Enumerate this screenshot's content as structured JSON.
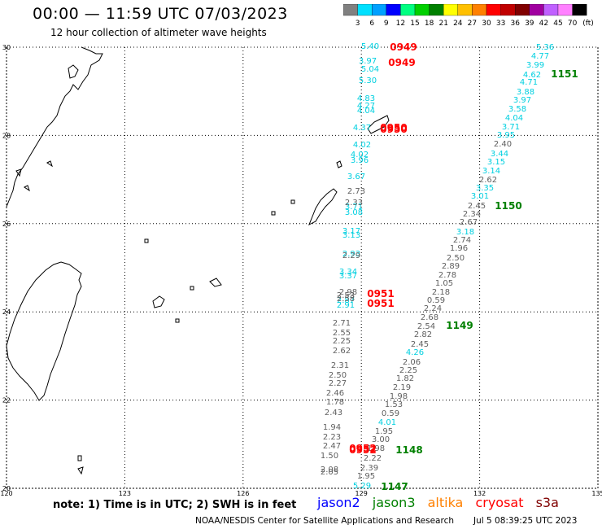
{
  "header": {
    "title": "00:00 — 11:59 UTC 07/03/2023",
    "subtitle": "12 hour collection of altimeter wave heights"
  },
  "legend": {
    "unit": "(ft)",
    "colors": [
      "#808080",
      "#00e0ff",
      "#00a0ff",
      "#0000ff",
      "#00ff80",
      "#00d000",
      "#008000",
      "#ffff00",
      "#ffc000",
      "#ff8000",
      "#ff0000",
      "#c00000",
      "#800000",
      "#a000a0",
      "#c060ff",
      "#ff80ff",
      "#000000"
    ],
    "ticks": [
      "3",
      "6",
      "9",
      "12",
      "15",
      "18",
      "21",
      "24",
      "27",
      "30",
      "33",
      "36",
      "39",
      "42",
      "45",
      "70"
    ]
  },
  "axes": {
    "lon_labels": [
      "120",
      "123",
      "126",
      "129",
      "132",
      "135"
    ],
    "lat_labels": [
      "30",
      "28",
      "26",
      "24",
      "22",
      "20"
    ]
  },
  "colors": {
    "jason2": "#0000ff",
    "jason3": "#008000",
    "altika": "#ff8000",
    "cryosat": "#ff0000",
    "s3a": "#800000",
    "cyan_track": "#00d0e0",
    "gray_track": "#606060"
  },
  "observations": {
    "cyan_a": [
      "5.40",
      "3.97",
      "5.04",
      "5.30",
      "4.83",
      "4.27",
      "4.04",
      "4.37",
      "4.02",
      "4.02",
      "3.96",
      "3.67",
      "3.71",
      "3.08",
      "3.17",
      "3.13",
      "2.93",
      "3.34",
      "3.37",
      "2.87",
      "2.91"
    ],
    "gray_a": [
      "2.73",
      "2.33",
      "2.29",
      "2.98",
      "2.53",
      "2.58",
      "2.71",
      "2.55",
      "2.25",
      "2.62",
      "2.31",
      "2.50",
      "2.27",
      "2.46",
      "1.78",
      "2.43",
      "1.94",
      "2.23",
      "2.47",
      "1.50",
      "2.08",
      "2.05"
    ],
    "track_b": [
      "5.36",
      "4.77",
      "3.99",
      "4.62",
      "4.71",
      "3.88",
      "3.97",
      "3.58",
      "4.04",
      "3.71",
      "3.95",
      "2.40",
      "3.44",
      "3.15",
      "3.14",
      "2.62",
      "3.35",
      "3.01",
      "2.45",
      "2.34",
      "2.67",
      "3.18",
      "2.74",
      "1.96",
      "2.50",
      "2.89",
      "2.78",
      "1.05",
      "2.18",
      "0.59",
      "2.24",
      "2.68",
      "2.54",
      "2.82",
      "2.45",
      "4.26",
      "2.06",
      "2.25",
      "1.82",
      "2.19",
      "1.98",
      "1.53",
      "0.59",
      "4.01",
      "1.95",
      "3.00",
      "1.98",
      "2.22",
      "2.39",
      "1.95",
      "5.29"
    ],
    "time_red": [
      "0949",
      "0949",
      "0950",
      "0950",
      "0951",
      "0951",
      "0952",
      "0952"
    ],
    "time_green": [
      "1151",
      "1150",
      "1149",
      "1148",
      "1147"
    ]
  },
  "footer": {
    "note": "note: 1) Time is in UTC; 2) SWH is in feet",
    "satellites": [
      "jason2",
      "jason3",
      "altika",
      "cryosat",
      "s3a"
    ],
    "credit": "NOAA/NESDIS Center for Satellite Applications and Research",
    "generated": "Jul  5 08:39:25 UTC 2023"
  }
}
